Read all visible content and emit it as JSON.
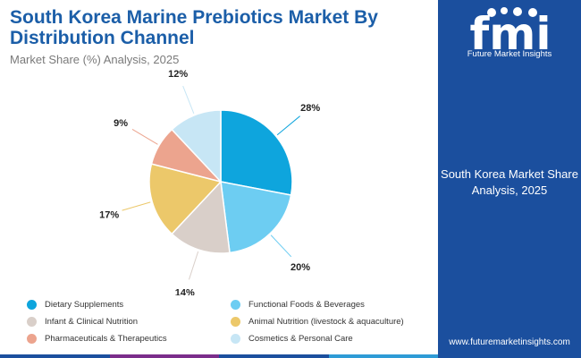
{
  "header": {
    "title": "South Korea Marine Prebiotics Market By Distribution Channel",
    "subtitle": "Market Share (%) Analysis, 2025"
  },
  "chart_data": {
    "type": "pie",
    "title": "South Korea Marine Prebiotics Market By Distribution Channel",
    "subtitle": "Market Share (%) Analysis, 2025",
    "unit": "%",
    "start_angle_deg": 0,
    "direction": "clockwise",
    "legend_position": "bottom",
    "slices": [
      {
        "label": "Dietary Supplements",
        "value": 28,
        "display": "28%",
        "color": "#0ea5dd"
      },
      {
        "label": "Functional Foods & Beverages",
        "value": 20,
        "display": "20%",
        "color": "#6dcdf2"
      },
      {
        "label": "Infant & Clinical Nutrition",
        "value": 14,
        "display": "14%",
        "color": "#d9cfc9"
      },
      {
        "label": "Animal Nutrition (livestock & aquaculture)",
        "value": 17,
        "display": "17%",
        "color": "#ecc86a"
      },
      {
        "label": "Pharmaceuticals & Therapeutics",
        "value": 9,
        "display": "9%",
        "color": "#eca48e"
      },
      {
        "label": "Cosmetics & Personal Care",
        "value": 12,
        "display": "12%",
        "color": "#c7e6f5"
      }
    ]
  },
  "brand": {
    "name": "Future Market Insights",
    "sidebar_text": "South Korea Market Share Analysis, 2025",
    "url": "www.futuremarketinsights.com",
    "sidebar_color": "#1b4f9e",
    "bar_colors": [
      "#1b4f9e",
      "#7b2d8b",
      "#1b4f9e",
      "#2e9bd6"
    ]
  }
}
